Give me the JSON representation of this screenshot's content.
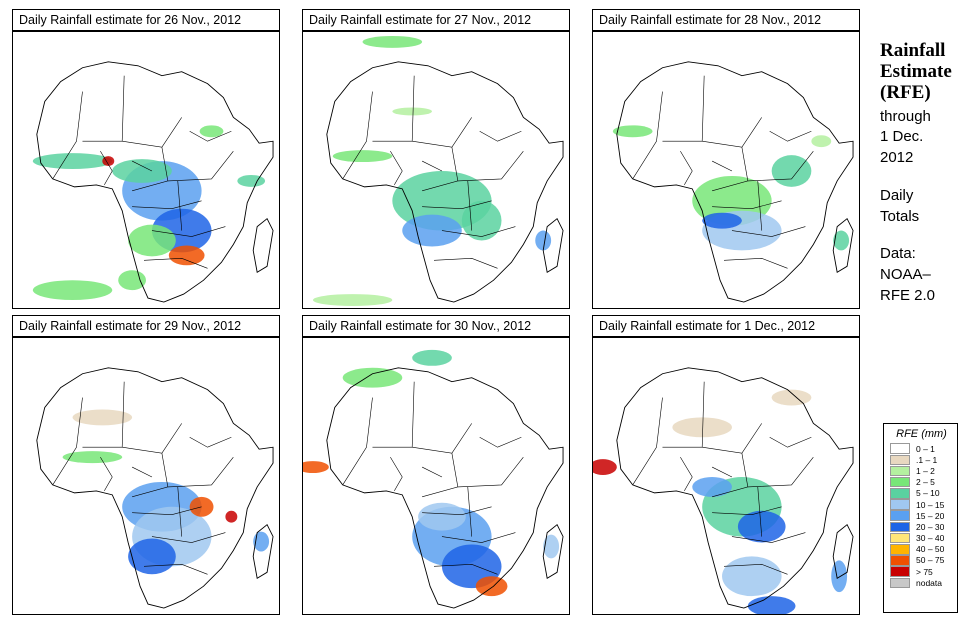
{
  "panels": [
    {
      "title": "Daily Rainfall estimate for  26 Nov., 2012"
    },
    {
      "title": "Daily Rainfall estimate for  27 Nov., 2012"
    },
    {
      "title": "Daily Rainfall estimate for  28 Nov., 2012"
    },
    {
      "title": "Daily Rainfall estimate for  29 Nov., 2012"
    },
    {
      "title": "Daily Rainfall estimate for  30 Nov., 2012"
    },
    {
      "title": "Daily Rainfall estimate for  1 Dec., 2012"
    }
  ],
  "side": {
    "title_line1": "Rainfall",
    "title_line2": "Estimate",
    "title_line3": "(RFE)",
    "through": "through",
    "date_line1": "1 Dec.",
    "date_line2": "2012",
    "period_line1": "Daily",
    "period_line2": "Totals",
    "data_label": "Data:",
    "source_line1": "NOAA–",
    "source_line2": "RFE 2.0"
  },
  "legend": {
    "title": "RFE (mm)",
    "items": [
      {
        "label": "0 – 1",
        "color": "#ffffff"
      },
      {
        "label": ".1 – 1",
        "color": "#e8d8c0"
      },
      {
        "label": "1 – 2",
        "color": "#b4f0a0"
      },
      {
        "label": "2 – 5",
        "color": "#78e678"
      },
      {
        "label": "5 – 10",
        "color": "#5ad2a0"
      },
      {
        "label": "10 – 15",
        "color": "#a0c8f0"
      },
      {
        "label": "15 – 20",
        "color": "#5aa0f0"
      },
      {
        "label": "20 – 30",
        "color": "#1e64e6"
      },
      {
        "label": "30 – 40",
        "color": "#ffe678"
      },
      {
        "label": "40 – 50",
        "color": "#ffb400"
      },
      {
        "label": "50 – 75",
        "color": "#f05000"
      },
      {
        "label": "> 75",
        "color": "#c80000"
      },
      {
        "label": "nodata",
        "color": "#c8c8c8"
      }
    ]
  }
}
